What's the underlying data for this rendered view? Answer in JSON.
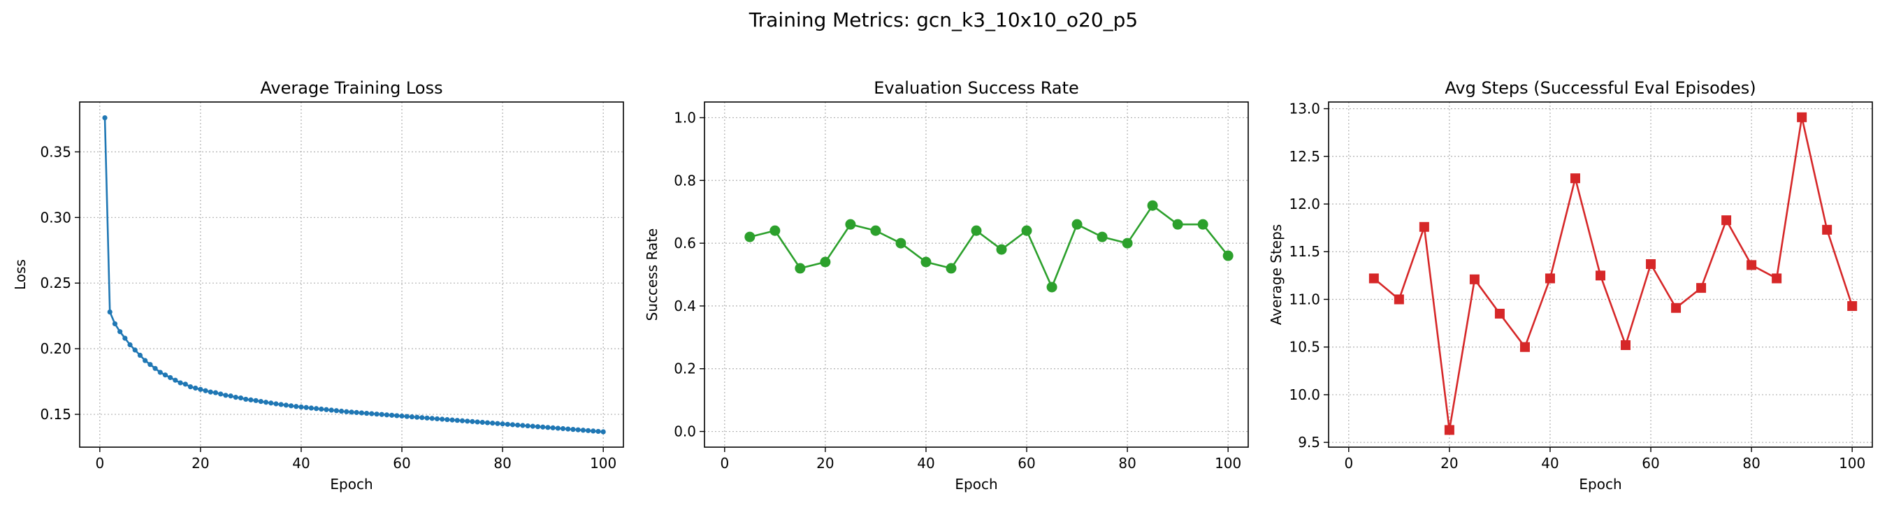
{
  "figure": {
    "suptitle": "Training Metrics: gcn_k3_10x10_o20_p5"
  },
  "chart_data": [
    {
      "type": "line",
      "title": "Average Training Loss",
      "xlabel": "Epoch",
      "ylabel": "Loss",
      "xlim": [
        -4,
        104
      ],
      "ylim": [
        0.125,
        0.388
      ],
      "xticks": [
        0,
        20,
        40,
        60,
        80,
        100
      ],
      "yticks": [
        0.15,
        0.2,
        0.25,
        0.3,
        0.35
      ],
      "ytick_decimals": 2,
      "grid": true,
      "color": "#1f77b4",
      "marker": "dot",
      "series": [
        {
          "x": [
            1,
            2,
            3,
            4,
            5,
            6,
            7,
            8,
            9,
            10,
            11,
            12,
            13,
            14,
            15,
            16,
            17,
            18,
            19,
            20,
            21,
            22,
            23,
            24,
            25,
            26,
            27,
            28,
            29,
            30,
            31,
            32,
            33,
            34,
            35,
            36,
            37,
            38,
            39,
            40,
            41,
            42,
            43,
            44,
            45,
            46,
            47,
            48,
            49,
            50,
            51,
            52,
            53,
            54,
            55,
            56,
            57,
            58,
            59,
            60,
            61,
            62,
            63,
            64,
            65,
            66,
            67,
            68,
            69,
            70,
            71,
            72,
            73,
            74,
            75,
            76,
            77,
            78,
            79,
            80,
            81,
            82,
            83,
            84,
            85,
            86,
            87,
            88,
            89,
            90,
            91,
            92,
            93,
            94,
            95,
            96,
            97,
            98,
            99,
            100
          ],
          "y": [
            0.376,
            0.228,
            0.219,
            0.213,
            0.208,
            0.203,
            0.199,
            0.195,
            0.191,
            0.188,
            0.185,
            0.182,
            0.18,
            0.178,
            0.176,
            0.174,
            0.173,
            0.171,
            0.17,
            0.169,
            0.168,
            0.167,
            0.1665,
            0.1655,
            0.1645,
            0.164,
            0.163,
            0.1625,
            0.1615,
            0.161,
            0.1605,
            0.1598,
            0.1592,
            0.1586,
            0.158,
            0.1575,
            0.157,
            0.1565,
            0.156,
            0.1556,
            0.1552,
            0.1548,
            0.1544,
            0.154,
            0.1536,
            0.1532,
            0.1528,
            0.1524,
            0.152,
            0.1517,
            0.1514,
            0.1511,
            0.1508,
            0.1505,
            0.1502,
            0.1499,
            0.1496,
            0.1493,
            0.149,
            0.1487,
            0.1484,
            0.1481,
            0.1478,
            0.1475,
            0.1472,
            0.1469,
            0.1466,
            0.1463,
            0.146,
            0.1457,
            0.1454,
            0.1451,
            0.1448,
            0.1445,
            0.1442,
            0.1439,
            0.1436,
            0.1433,
            0.143,
            0.1427,
            0.1424,
            0.1421,
            0.1418,
            0.1415,
            0.1412,
            0.1409,
            0.1406,
            0.1403,
            0.14,
            0.1397,
            0.1394,
            0.1391,
            0.1388,
            0.1385,
            0.1382,
            0.1379,
            0.1376,
            0.1373,
            0.137,
            0.1367
          ]
        }
      ]
    },
    {
      "type": "line",
      "title": "Evaluation Success Rate",
      "xlabel": "Epoch",
      "ylabel": "Success Rate",
      "xlim": [
        -4,
        104
      ],
      "ylim": [
        -0.05,
        1.05
      ],
      "xticks": [
        0,
        20,
        40,
        60,
        80,
        100
      ],
      "yticks": [
        0.0,
        0.2,
        0.4,
        0.6,
        0.8,
        1.0
      ],
      "ytick_decimals": 1,
      "grid": true,
      "color": "#2ca02c",
      "marker": "circle",
      "series": [
        {
          "x": [
            5,
            10,
            15,
            20,
            25,
            30,
            35,
            40,
            45,
            50,
            55,
            60,
            65,
            70,
            75,
            80,
            85,
            90,
            95,
            100
          ],
          "y": [
            0.62,
            0.64,
            0.52,
            0.54,
            0.66,
            0.64,
            0.6,
            0.54,
            0.52,
            0.64,
            0.58,
            0.64,
            0.46,
            0.66,
            0.62,
            0.6,
            0.72,
            0.66,
            0.66,
            0.56
          ]
        }
      ]
    },
    {
      "type": "line",
      "title": "Avg Steps (Successful Eval Episodes)",
      "xlabel": "Epoch",
      "ylabel": "Average Steps",
      "xlim": [
        -4,
        104
      ],
      "ylim": [
        9.45,
        13.07
      ],
      "xticks": [
        0,
        20,
        40,
        60,
        80,
        100
      ],
      "yticks": [
        9.5,
        10.0,
        10.5,
        11.0,
        11.5,
        12.0,
        12.5,
        13.0
      ],
      "ytick_decimals": 1,
      "grid": true,
      "color": "#d62728",
      "marker": "square",
      "series": [
        {
          "x": [
            5,
            10,
            15,
            20,
            25,
            30,
            35,
            40,
            45,
            50,
            55,
            60,
            65,
            70,
            75,
            80,
            85,
            90,
            95,
            100
          ],
          "y": [
            11.22,
            11.0,
            11.76,
            9.63,
            11.21,
            10.85,
            10.5,
            11.22,
            12.27,
            11.25,
            10.52,
            11.37,
            10.91,
            11.12,
            11.83,
            11.36,
            11.22,
            12.91,
            11.73,
            10.93
          ]
        }
      ]
    }
  ]
}
